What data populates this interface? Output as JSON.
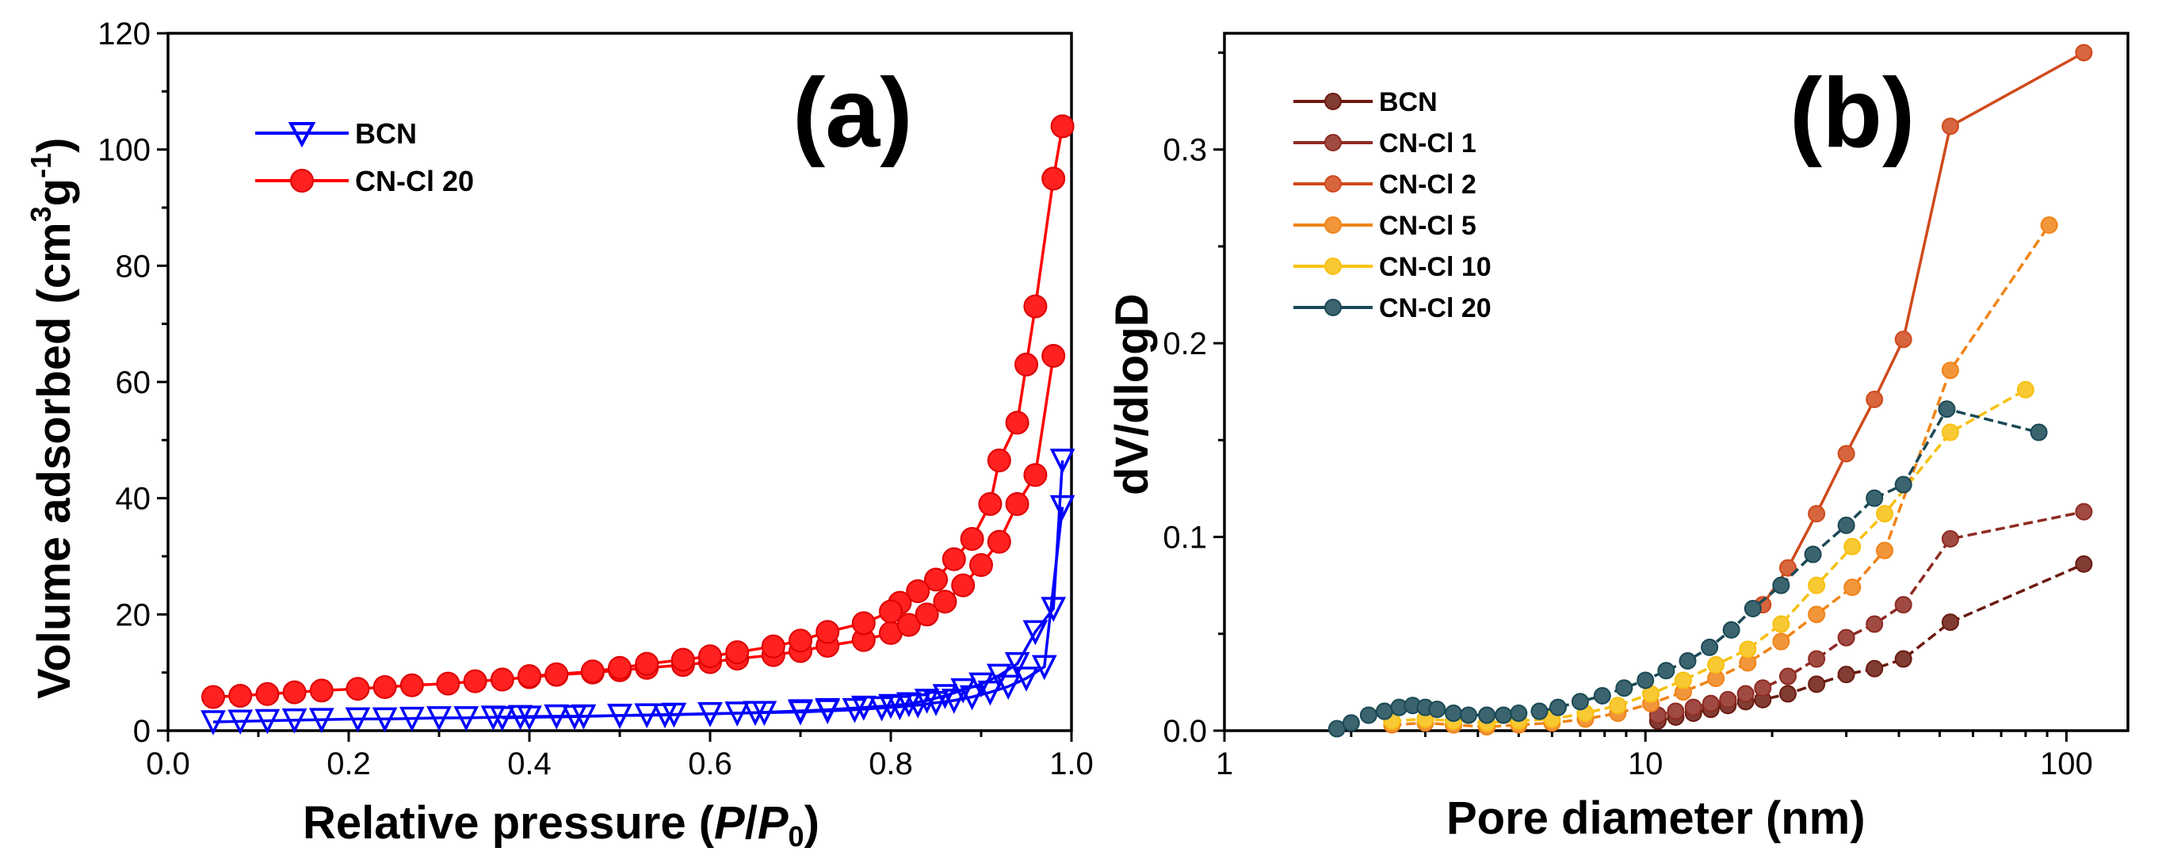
{
  "figure": {
    "colors": {
      "bcn_a": "#0000ff",
      "cncl20_a": "#ff0000"
    }
  },
  "chart_data": [
    {
      "type": "scatter",
      "panel_label": "(a)",
      "xlabel": "Relative pressure (P/P0)",
      "xlabel_parts": {
        "pre": "Relative pressure (",
        "p": "P",
        "slash": "/",
        "p0": "P",
        "sub": "0",
        "post": ")"
      },
      "ylabel_main": "Volume adsorbed (cm",
      "ylabel_sup1": "3",
      "ylabel_mid": "g",
      "ylabel_sup2": "-1",
      "ylabel_end": ")",
      "xlim": [
        0.0,
        1.0
      ],
      "ylim": [
        0,
        120
      ],
      "xticks": [
        0.0,
        0.2,
        0.4,
        0.6,
        0.8,
        1.0
      ],
      "xtick_labels": [
        "0.0",
        "0.2",
        "0.4",
        "0.6",
        "0.8",
        "1.0"
      ],
      "yticks": [
        0,
        20,
        40,
        60,
        80,
        100,
        120
      ],
      "ytick_labels": [
        "0",
        "20",
        "40",
        "60",
        "80",
        "100",
        "120"
      ],
      "legend_position": "top-left",
      "series": [
        {
          "name": "BCN",
          "marker": "triangle-down",
          "color": "#0000ff",
          "adsorption": {
            "x": [
              0.05,
              0.08,
              0.11,
              0.14,
              0.17,
              0.21,
              0.24,
              0.27,
              0.3,
              0.33,
              0.36,
              0.39,
              0.43,
              0.46,
              0.5,
              0.53,
              0.56,
              0.6,
              0.63,
              0.66,
              0.7,
              0.73,
              0.76,
              0.79,
              0.81,
              0.83,
              0.85,
              0.87,
              0.89,
              0.91,
              0.93,
              0.95,
              0.97,
              0.99
            ],
            "y": [
              1.5,
              1.6,
              1.7,
              1.8,
              1.9,
              2.0,
              2.0,
              2.1,
              2.2,
              2.2,
              2.3,
              2.4,
              2.5,
              2.5,
              2.6,
              2.7,
              2.8,
              2.9,
              3.0,
              3.1,
              3.2,
              3.4,
              3.6,
              3.9,
              4.1,
              4.4,
              4.8,
              5.2,
              5.8,
              6.6,
              7.6,
              9.0,
              11.0,
              38.5
            ]
          },
          "desorption": {
            "x": [
              0.99,
              0.98,
              0.96,
              0.94,
              0.92,
              0.9,
              0.88,
              0.86,
              0.84,
              0.82,
              0.8,
              0.77,
              0.73,
              0.7,
              0.65,
              0.6,
              0.55,
              0.5,
              0.45,
              0.4,
              0.37
            ],
            "y": [
              46.5,
              21.0,
              17.0,
              11.5,
              9.5,
              8.0,
              7.0,
              6.0,
              5.2,
              4.6,
              4.3,
              4.0,
              3.6,
              3.4,
              3.1,
              2.9,
              2.7,
              2.6,
              2.4,
              2.3,
              2.2
            ]
          }
        },
        {
          "name": "CN-Cl 20",
          "marker": "circle",
          "color": "#ff0000",
          "adsorption": {
            "x": [
              0.05,
              0.08,
              0.11,
              0.14,
              0.17,
              0.21,
              0.24,
              0.27,
              0.31,
              0.34,
              0.37,
              0.4,
              0.43,
              0.47,
              0.5,
              0.53,
              0.57,
              0.6,
              0.63,
              0.67,
              0.7,
              0.73,
              0.77,
              0.8,
              0.82,
              0.84,
              0.86,
              0.88,
              0.9,
              0.92,
              0.94,
              0.96,
              0.98
            ],
            "y": [
              5.8,
              6.0,
              6.3,
              6.6,
              6.9,
              7.2,
              7.5,
              7.8,
              8.1,
              8.5,
              8.8,
              9.2,
              9.6,
              10.0,
              10.4,
              10.8,
              11.3,
              11.8,
              12.4,
              13.0,
              13.7,
              14.6,
              15.6,
              16.8,
              18.2,
              20.0,
              22.2,
              25.0,
              28.5,
              32.5,
              39.0,
              44.0,
              64.5
            ]
          },
          "desorption": {
            "x": [
              0.99,
              0.98,
              0.96,
              0.95,
              0.94,
              0.92,
              0.91,
              0.89,
              0.87,
              0.85,
              0.83,
              0.81,
              0.8,
              0.77,
              0.73,
              0.7,
              0.67,
              0.63,
              0.6,
              0.57,
              0.53,
              0.5,
              0.47,
              0.43,
              0.4
            ],
            "y": [
              104.0,
              95.0,
              73.0,
              63.0,
              53.0,
              46.5,
              39.0,
              33.0,
              29.5,
              26.0,
              24.0,
              22.0,
              20.5,
              18.5,
              17.0,
              15.5,
              14.5,
              13.5,
              12.8,
              12.2,
              11.5,
              10.8,
              10.2,
              9.7,
              9.4
            ]
          }
        }
      ],
      "legend": [
        "BCN",
        "CN-Cl 20"
      ]
    },
    {
      "type": "line",
      "panel_label": "(b)",
      "xlabel": "Pore diameter (nm)",
      "ylabel": "dV/dlogD",
      "xscale": "log",
      "xlim": [
        1,
        140
      ],
      "ylim": [
        0.0,
        0.36
      ],
      "xticks": [
        1,
        10,
        100
      ],
      "xtick_labels": [
        "1",
        "10",
        "100"
      ],
      "yticks": [
        0.0,
        0.1,
        0.2,
        0.3
      ],
      "ytick_labels": [
        "0.0",
        "0.1",
        "0.2",
        "0.3"
      ],
      "legend_position": "top-left",
      "series": [
        {
          "name": "BCN",
          "color": "#6b1a10",
          "linestyle": "dashed",
          "x": [
            10.7,
            11.8,
            13.0,
            14.3,
            15.7,
            17.3,
            19.0,
            21.8,
            25.5,
            30.0,
            35.0,
            41.0,
            53.0,
            110.0
          ],
          "y": [
            0.005,
            0.007,
            0.009,
            0.011,
            0.013,
            0.015,
            0.016,
            0.019,
            0.024,
            0.029,
            0.032,
            0.037,
            0.056,
            0.086
          ]
        },
        {
          "name": "CN-Cl 1",
          "color": "#8e2b22",
          "linestyle": "dashed",
          "x": [
            10.7,
            11.8,
            13.0,
            14.3,
            15.7,
            17.3,
            19.0,
            21.8,
            25.5,
            30.0,
            35.0,
            41.0,
            53.0,
            110.0
          ],
          "y": [
            0.008,
            0.01,
            0.012,
            0.014,
            0.016,
            0.019,
            0.022,
            0.028,
            0.037,
            0.048,
            0.055,
            0.065,
            0.099,
            0.113
          ]
        },
        {
          "name": "CN-Cl 2",
          "color": "#d04a1c",
          "linestyle": "solid",
          "x": [
            19.0,
            21.8,
            25.5,
            30.0,
            35.0,
            41.0,
            53.0,
            110.0
          ],
          "y": [
            0.065,
            0.084,
            0.112,
            0.143,
            0.171,
            0.202,
            0.312,
            0.35
          ]
        },
        {
          "name": "CN-Cl 5",
          "color": "#f08418",
          "linestyle": "dashed",
          "x": [
            2.5,
            3.0,
            3.5,
            4.2,
            5.0,
            6.0,
            7.2,
            8.6,
            10.3,
            12.3,
            14.7,
            17.5,
            21.0,
            25.5,
            31.0,
            37.0,
            53.0,
            91.0
          ],
          "y": [
            0.003,
            0.004,
            0.003,
            0.002,
            0.003,
            0.004,
            0.006,
            0.009,
            0.014,
            0.02,
            0.027,
            0.035,
            0.046,
            0.06,
            0.074,
            0.093,
            0.186,
            0.261
          ]
        },
        {
          "name": "CN-Cl 10",
          "color": "#f8c010",
          "linestyle": "dashed",
          "x": [
            2.5,
            3.0,
            3.5,
            4.2,
            5.0,
            6.0,
            7.2,
            8.6,
            10.3,
            12.3,
            14.7,
            17.5,
            21.0,
            25.5,
            31.0,
            37.0,
            53.0,
            80.0
          ],
          "y": [
            0.005,
            0.006,
            0.005,
            0.004,
            0.005,
            0.006,
            0.009,
            0.013,
            0.019,
            0.026,
            0.034,
            0.042,
            0.055,
            0.075,
            0.095,
            0.112,
            0.154,
            0.176
          ]
        },
        {
          "name": "CN-Cl 20",
          "color": "#1a4955",
          "linestyle": "dashed",
          "x": [
            1.85,
            2.0,
            2.2,
            2.4,
            2.6,
            2.8,
            3.0,
            3.2,
            3.5,
            3.8,
            4.2,
            4.6,
            5.0,
            5.6,
            6.2,
            7.0,
            7.9,
            8.9,
            10.0,
            11.2,
            12.6,
            14.2,
            16.0,
            18.0,
            21.0,
            25.0,
            30.0,
            35.0,
            41.0,
            52.0,
            86.0
          ],
          "y": [
            0.001,
            0.004,
            0.008,
            0.01,
            0.012,
            0.013,
            0.012,
            0.011,
            0.009,
            0.008,
            0.008,
            0.008,
            0.009,
            0.01,
            0.012,
            0.015,
            0.018,
            0.022,
            0.026,
            0.031,
            0.036,
            0.043,
            0.052,
            0.063,
            0.075,
            0.091,
            0.106,
            0.12,
            0.127,
            0.166,
            0.154
          ]
        }
      ],
      "legend": [
        "BCN",
        "CN-Cl 1",
        "CN-Cl 2",
        "CN-Cl 5",
        "CN-Cl 10",
        "CN-Cl 20"
      ]
    }
  ]
}
